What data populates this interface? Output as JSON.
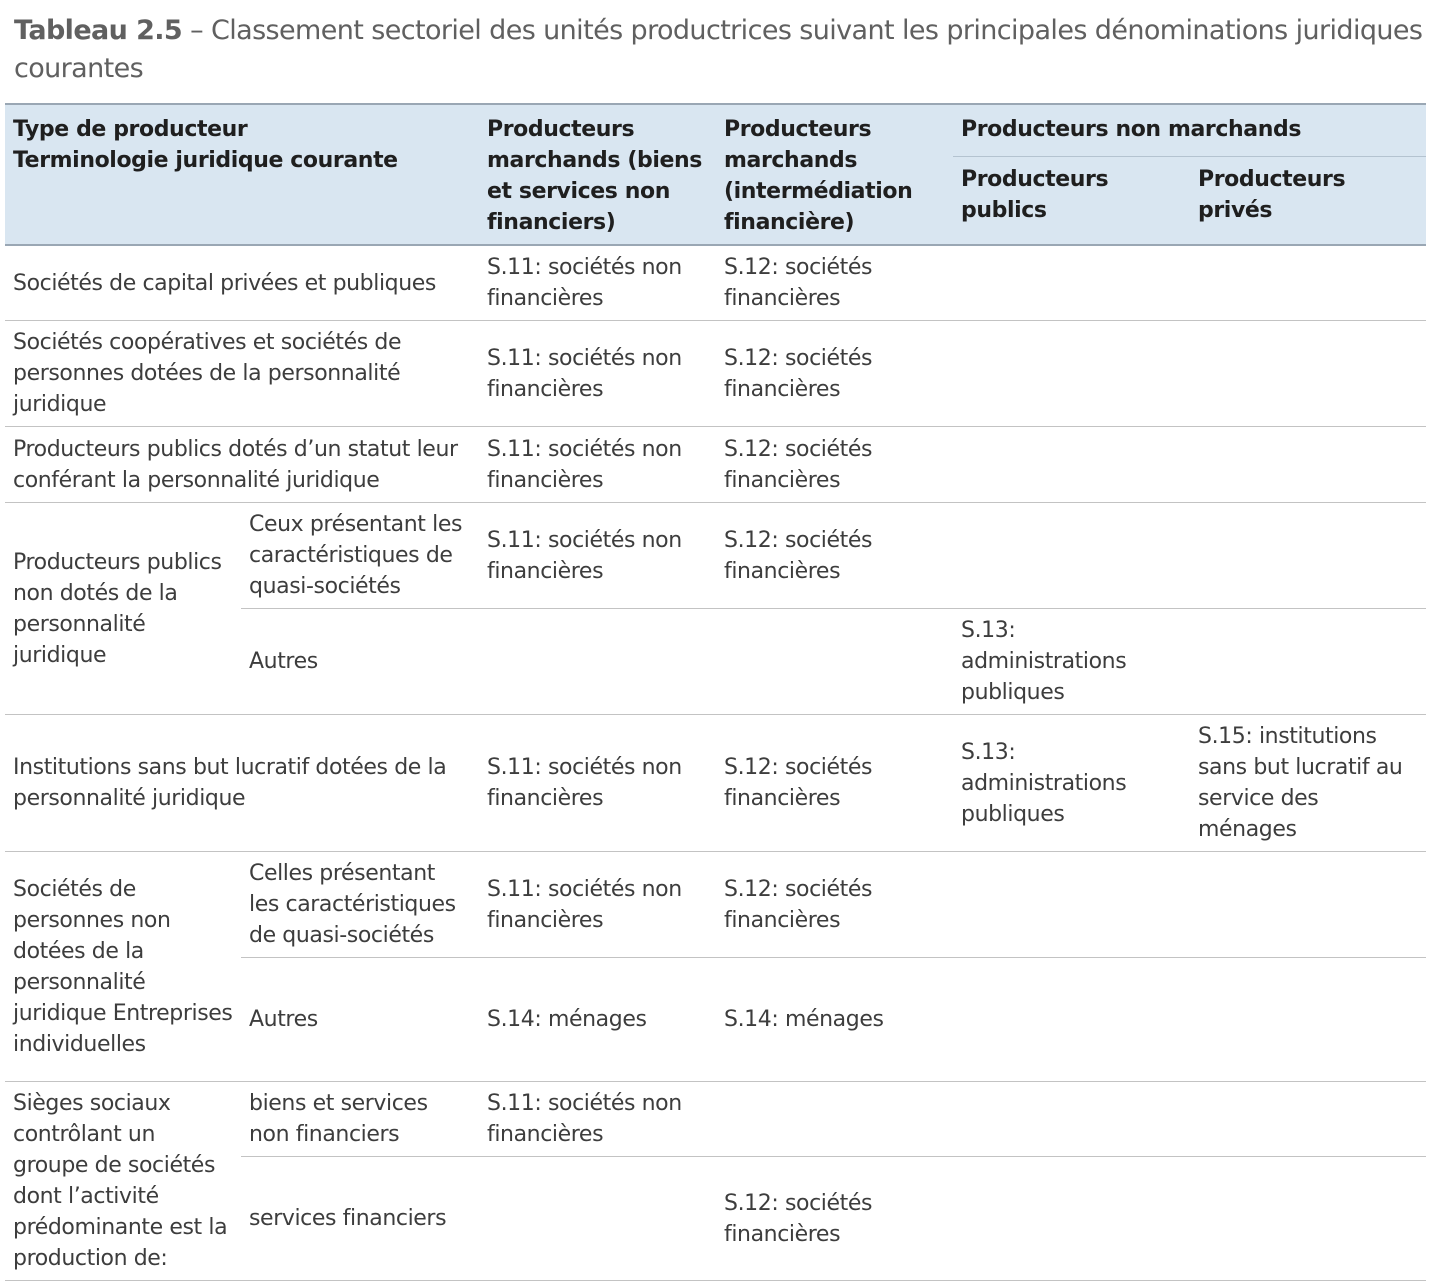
{
  "caption": {
    "label": "Tableau 2.5",
    "text": " – Classement sectoriel des unités productrices suivant les principales dénominations juridiques courantes"
  },
  "header": {
    "type_line1": "Type de producteur",
    "type_line2": "Terminologie juridique courante",
    "col_marchands_nf": "Producteurs marchands (biens et services non financiers)",
    "col_marchands_f": "Producteurs marchands (intermédiation financière)",
    "col_non_marchands": "Producteurs non marchands",
    "col_publics": "Producteurs publics",
    "col_prives": "Producteurs privés"
  },
  "rows": {
    "r1": {
      "label": "Sociétés de capital privées et publiques",
      "nf": "S.11: sociétés non financières",
      "f": "S.12: sociétés financières"
    },
    "r2": {
      "label": "Sociétés coopératives et sociétés de personnes dotées de la personnalité juridique",
      "nf": "S.11: sociétés non financières",
      "f": "S.12: sociétés financières"
    },
    "r3": {
      "label": "Producteurs publics dotés d’un statut leur conférant la personnalité juridique",
      "nf": "S.11: sociétés non financières",
      "f": "S.12: sociétés financières"
    },
    "r4": {
      "group": "Producteurs publics non dotés de la personnalité juridique",
      "a_sub": "Ceux présentant les caractéristiques de quasi-sociétés",
      "a_nf": "S.11: sociétés non financières",
      "a_f": "S.12: sociétés financières",
      "b_sub": "Autres",
      "b_pub": "S.13: administrations publiques"
    },
    "r5": {
      "label": "Institutions sans but lucratif dotées de la personnalité juridique",
      "nf": "S.11: sociétés non financières",
      "f": "S.12: sociétés financières",
      "pub": "S.13: administrations publiques",
      "priv": "S.15: institutions sans but lucratif au service des ménages"
    },
    "r6": {
      "group": "Sociétés de personnes non dotées de la personnalité juridique Entreprises individuelles",
      "a_sub": "Celles présentant les caractéristiques de quasi-sociétés",
      "a_nf": "S.11: sociétés non financières",
      "a_f": "S.12: sociétés financières",
      "b_sub": "Autres",
      "b_nf": "S.14: ménages",
      "b_f": "S.14: ménages"
    },
    "r7": {
      "group": "Sièges sociaux contrôlant un groupe de sociétés dont l’activité prédominante est la production de:",
      "a_sub": "biens et services non financiers",
      "a_nf": "S.11: sociétés non financières",
      "b_sub": "services financiers",
      "b_f": "S.12: sociétés financières"
    }
  }
}
